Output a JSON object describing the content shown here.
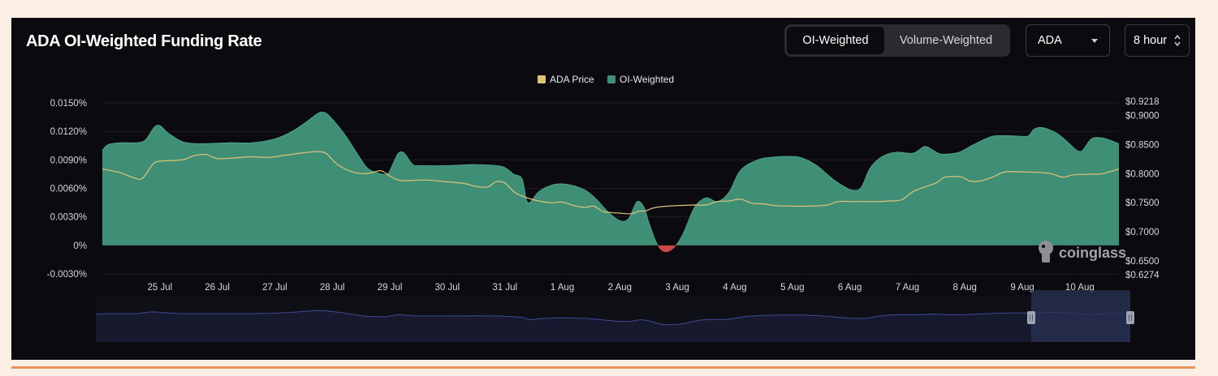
{
  "header": {
    "title": "ADA OI-Weighted Funding Rate",
    "tabs": [
      {
        "label": "OI-Weighted",
        "active": true
      },
      {
        "label": "Volume-Weighted",
        "active": false
      }
    ],
    "asset_select": {
      "value": "ADA",
      "icon": "chevron-down-icon"
    },
    "interval_select": {
      "value": "8 hour",
      "icon": "up-down-arrows-icon"
    }
  },
  "watermark": {
    "text": "coinglass",
    "icon": "coinglass-logo-icon"
  },
  "colors": {
    "funding_positive": "#3f8f76",
    "funding_negative": "#c84a4a",
    "price_line": "#e0c37a",
    "navigator_line": "#3b4a9a",
    "navigator_selection": "#2a3354"
  },
  "chart_data": {
    "type": "area",
    "legend": {
      "placement": "top-center",
      "items": [
        {
          "label": "ADA Price",
          "color": "#e0c37a"
        },
        {
          "label": "OI-Weighted",
          "color": "#3f8f76"
        }
      ]
    },
    "x_axis": {
      "ticks": [
        {
          "label": "25 Jul",
          "t": 1.0
        },
        {
          "label": "26 Jul",
          "t": 2.0
        },
        {
          "label": "27 Jul",
          "t": 3.0
        },
        {
          "label": "28 Jul",
          "t": 4.0
        },
        {
          "label": "29 Jul",
          "t": 5.0
        },
        {
          "label": "30 Jul",
          "t": 6.0
        },
        {
          "label": "31 Jul",
          "t": 7.0
        },
        {
          "label": "1 Aug",
          "t": 8.0
        },
        {
          "label": "2 Aug",
          "t": 9.0
        },
        {
          "label": "3 Aug",
          "t": 10.0
        },
        {
          "label": "4 Aug",
          "t": 11.0
        },
        {
          "label": "5 Aug",
          "t": 12.0
        },
        {
          "label": "6 Aug",
          "t": 13.0
        },
        {
          "label": "7 Aug",
          "t": 14.0
        },
        {
          "label": "8 Aug",
          "t": 15.0
        },
        {
          "label": "9 Aug",
          "t": 16.0
        },
        {
          "label": "10 Aug",
          "t": 17.0
        }
      ],
      "range": [
        0.0,
        17.68
      ]
    },
    "y_left": {
      "ticks": [
        "0.0150%",
        "0.0120%",
        "0.0090%",
        "0.0060%",
        "0.0030%",
        "0%",
        "-0.0030%"
      ],
      "tick_values": [
        0.015,
        0.012,
        0.009,
        0.006,
        0.003,
        0,
        -0.003
      ],
      "range": [
        -0.003,
        0.015
      ]
    },
    "y_right": {
      "ticks": [
        "$0.9218",
        "$0.9000",
        "$0.8500",
        "$0.8000",
        "$0.7500",
        "$0.7000",
        "$0.6500",
        "$0.6274"
      ],
      "tick_values": [
        0.9218,
        0.9,
        0.85,
        0.8,
        0.75,
        0.7,
        0.65,
        0.6274
      ],
      "range": [
        0.6274,
        0.9218
      ]
    },
    "grid": true,
    "series": [
      {
        "name": "OI-Weighted",
        "unit": "%",
        "points": [
          [
            0.0,
            0.01
          ],
          [
            0.1,
            0.0106
          ],
          [
            0.3,
            0.0108
          ],
          [
            0.6,
            0.0108
          ],
          [
            0.75,
            0.0111
          ],
          [
            0.9,
            0.0124
          ],
          [
            1.0,
            0.0126
          ],
          [
            1.15,
            0.0118
          ],
          [
            1.4,
            0.0109
          ],
          [
            1.7,
            0.0107
          ],
          [
            2.2,
            0.0108
          ],
          [
            2.6,
            0.0108
          ],
          [
            3.0,
            0.0112
          ],
          [
            3.3,
            0.012
          ],
          [
            3.55,
            0.013
          ],
          [
            3.75,
            0.0139
          ],
          [
            3.85,
            0.014
          ],
          [
            3.95,
            0.0136
          ],
          [
            4.2,
            0.0118
          ],
          [
            4.45,
            0.0095
          ],
          [
            4.6,
            0.0082
          ],
          [
            4.75,
            0.0077
          ],
          [
            4.95,
            0.0075
          ],
          [
            5.05,
            0.0085
          ],
          [
            5.15,
            0.0097
          ],
          [
            5.25,
            0.0097
          ],
          [
            5.4,
            0.0085
          ],
          [
            5.55,
            0.0084
          ],
          [
            6.0,
            0.0084
          ],
          [
            6.5,
            0.0085
          ],
          [
            6.95,
            0.0083
          ],
          [
            7.15,
            0.0075
          ],
          [
            7.3,
            0.007
          ],
          [
            7.4,
            0.0045
          ],
          [
            7.6,
            0.0057
          ],
          [
            7.85,
            0.0064
          ],
          [
            8.1,
            0.0064
          ],
          [
            8.4,
            0.0058
          ],
          [
            8.6,
            0.0048
          ],
          [
            8.8,
            0.0035
          ],
          [
            9.0,
            0.0026
          ],
          [
            9.15,
            0.0028
          ],
          [
            9.3,
            0.0046
          ],
          [
            9.42,
            0.004
          ],
          [
            9.5,
            0.0025
          ],
          [
            9.6,
            0.0008
          ],
          [
            9.7,
            -0.0004
          ],
          [
            9.82,
            -0.0007
          ],
          [
            9.95,
            -0.0002
          ],
          [
            10.1,
            0.0012
          ],
          [
            10.3,
            0.004
          ],
          [
            10.5,
            0.005
          ],
          [
            10.7,
            0.0046
          ],
          [
            10.9,
            0.0056
          ],
          [
            11.1,
            0.0079
          ],
          [
            11.4,
            0.009
          ],
          [
            11.7,
            0.0093
          ],
          [
            12.1,
            0.0093
          ],
          [
            12.4,
            0.0085
          ],
          [
            12.7,
            0.007
          ],
          [
            12.9,
            0.0062
          ],
          [
            13.05,
            0.0058
          ],
          [
            13.2,
            0.0061
          ],
          [
            13.35,
            0.0081
          ],
          [
            13.55,
            0.0093
          ],
          [
            13.8,
            0.0098
          ],
          [
            14.1,
            0.0097
          ],
          [
            14.3,
            0.0104
          ],
          [
            14.45,
            0.01
          ],
          [
            14.6,
            0.0096
          ],
          [
            14.9,
            0.0098
          ],
          [
            15.15,
            0.0106
          ],
          [
            15.5,
            0.0115
          ],
          [
            15.9,
            0.0115
          ],
          [
            16.1,
            0.0115
          ],
          [
            16.2,
            0.0122
          ],
          [
            16.35,
            0.0124
          ],
          [
            16.6,
            0.0118
          ],
          [
            16.8,
            0.0108
          ],
          [
            16.95,
            0.01
          ],
          [
            17.05,
            0.01
          ],
          [
            17.2,
            0.0112
          ],
          [
            17.4,
            0.0113
          ],
          [
            17.68,
            0.0107
          ]
        ]
      },
      {
        "name": "ADA Price",
        "unit": "USD",
        "points": [
          [
            0.0,
            0.808
          ],
          [
            0.3,
            0.802
          ],
          [
            0.55,
            0.793
          ],
          [
            0.7,
            0.792
          ],
          [
            0.9,
            0.818
          ],
          [
            1.1,
            0.822
          ],
          [
            1.4,
            0.824
          ],
          [
            1.6,
            0.831
          ],
          [
            1.8,
            0.833
          ],
          [
            2.0,
            0.826
          ],
          [
            2.3,
            0.827
          ],
          [
            2.6,
            0.829
          ],
          [
            2.9,
            0.828
          ],
          [
            3.2,
            0.832
          ],
          [
            3.5,
            0.836
          ],
          [
            3.75,
            0.838
          ],
          [
            3.9,
            0.834
          ],
          [
            4.1,
            0.815
          ],
          [
            4.35,
            0.803
          ],
          [
            4.55,
            0.8
          ],
          [
            4.7,
            0.802
          ],
          [
            4.85,
            0.805
          ],
          [
            5.0,
            0.796
          ],
          [
            5.2,
            0.788
          ],
          [
            5.6,
            0.789
          ],
          [
            6.0,
            0.786
          ],
          [
            6.3,
            0.783
          ],
          [
            6.5,
            0.778
          ],
          [
            6.7,
            0.777
          ],
          [
            6.85,
            0.786
          ],
          [
            7.0,
            0.784
          ],
          [
            7.2,
            0.766
          ],
          [
            7.5,
            0.755
          ],
          [
            7.8,
            0.75
          ],
          [
            8.0,
            0.751
          ],
          [
            8.2,
            0.745
          ],
          [
            8.4,
            0.742
          ],
          [
            8.55,
            0.744
          ],
          [
            8.7,
            0.735
          ],
          [
            8.85,
            0.733
          ],
          [
            9.0,
            0.732
          ],
          [
            9.2,
            0.731
          ],
          [
            9.32,
            0.735
          ],
          [
            9.45,
            0.736
          ],
          [
            9.55,
            0.74
          ],
          [
            9.7,
            0.743
          ],
          [
            10.0,
            0.745
          ],
          [
            10.3,
            0.746
          ],
          [
            10.5,
            0.746
          ],
          [
            10.7,
            0.752
          ],
          [
            10.9,
            0.753
          ],
          [
            11.1,
            0.756
          ],
          [
            11.3,
            0.749
          ],
          [
            11.5,
            0.748
          ],
          [
            11.7,
            0.745
          ],
          [
            12.0,
            0.744
          ],
          [
            12.3,
            0.744
          ],
          [
            12.6,
            0.746
          ],
          [
            12.8,
            0.752
          ],
          [
            13.0,
            0.752
          ],
          [
            13.3,
            0.752
          ],
          [
            13.5,
            0.752
          ],
          [
            13.7,
            0.753
          ],
          [
            13.9,
            0.755
          ],
          [
            14.1,
            0.769
          ],
          [
            14.3,
            0.777
          ],
          [
            14.5,
            0.784
          ],
          [
            14.65,
            0.794
          ],
          [
            14.8,
            0.795
          ],
          [
            14.95,
            0.794
          ],
          [
            15.1,
            0.787
          ],
          [
            15.3,
            0.788
          ],
          [
            15.5,
            0.795
          ],
          [
            15.7,
            0.803
          ],
          [
            16.0,
            0.803
          ],
          [
            16.3,
            0.802
          ],
          [
            16.5,
            0.8
          ],
          [
            16.7,
            0.794
          ],
          [
            16.9,
            0.798
          ],
          [
            17.2,
            0.799
          ],
          [
            17.4,
            0.8
          ],
          [
            17.68,
            0.808
          ]
        ]
      }
    ]
  }
}
